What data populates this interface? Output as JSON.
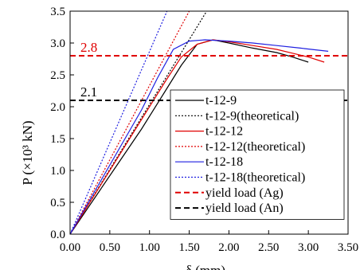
{
  "chart_data": {
    "type": "line",
    "xlabel": "δ (mm)",
    "ylabel": "P (×10³ kN)",
    "xlim": [
      0,
      3.5
    ],
    "ylim": [
      0,
      3.5
    ],
    "x_ticks": [
      "0.00",
      "0.50",
      "1.00",
      "1.50",
      "2.00",
      "2.50",
      "3.00",
      "3.50"
    ],
    "y_ticks": [
      "0.0",
      "0.5",
      "1.0",
      "1.5",
      "2.0",
      "2.5",
      "3.0",
      "3.5"
    ],
    "grid": false,
    "legend_position": "bottom-right, inside plot",
    "series": [
      {
        "name": "t-12-9",
        "color": "#000000",
        "dash": "solid",
        "x": [
          0,
          0.3,
          0.6,
          0.9,
          1.2,
          1.4,
          1.6,
          1.8,
          2.0,
          2.3,
          2.6,
          2.8,
          3.0
        ],
        "y": [
          0,
          0.55,
          1.1,
          1.65,
          2.25,
          2.65,
          2.98,
          3.05,
          3.0,
          2.92,
          2.85,
          2.78,
          2.7
        ]
      },
      {
        "name": "t-12-9(theoretical)",
        "color": "#000000",
        "dash": "dotted",
        "x": [
          0,
          1.72
        ],
        "y": [
          0,
          3.5
        ]
      },
      {
        "name": "t-12-12",
        "color": "#e00000",
        "dash": "solid",
        "x": [
          0,
          0.3,
          0.6,
          0.9,
          1.2,
          1.4,
          1.6,
          1.8,
          2.0,
          2.3,
          2.6,
          2.8,
          3.0,
          3.2
        ],
        "y": [
          0,
          0.6,
          1.2,
          1.8,
          2.4,
          2.78,
          2.98,
          3.05,
          3.02,
          2.96,
          2.9,
          2.84,
          2.78,
          2.7
        ]
      },
      {
        "name": "t-12-12(theoretical)",
        "color": "#e00000",
        "dash": "dotted",
        "x": [
          0,
          1.5
        ],
        "y": [
          0,
          3.5
        ]
      },
      {
        "name": "t-12-18",
        "color": "#1f1fe0",
        "dash": "solid",
        "x": [
          0,
          0.3,
          0.6,
          0.9,
          1.1,
          1.3,
          1.5,
          1.7,
          2.0,
          2.3,
          2.6,
          2.9,
          3.25
        ],
        "y": [
          0,
          0.65,
          1.3,
          1.95,
          2.45,
          2.9,
          3.03,
          3.05,
          3.03,
          3.0,
          2.96,
          2.92,
          2.87
        ]
      },
      {
        "name": "t-12-18(theoretical)",
        "color": "#1f1fe0",
        "dash": "dotted",
        "x": [
          0,
          1.22
        ],
        "y": [
          0,
          3.5
        ]
      },
      {
        "name": "yield load (Ag)",
        "color": "#e00000",
        "dash": "dashed",
        "x": [
          0,
          3.5
        ],
        "y": [
          2.8,
          2.8
        ]
      },
      {
        "name": "yield load (An)",
        "color": "#000000",
        "dash": "dashed",
        "x": [
          0,
          3.5
        ],
        "y": [
          2.1,
          2.1
        ]
      }
    ],
    "annotations": [
      {
        "text": "2.8",
        "x": 0.13,
        "y": 2.86,
        "color": "#e00000"
      },
      {
        "text": "2.1",
        "x": 0.13,
        "y": 2.16,
        "color": "#000000"
      }
    ]
  }
}
